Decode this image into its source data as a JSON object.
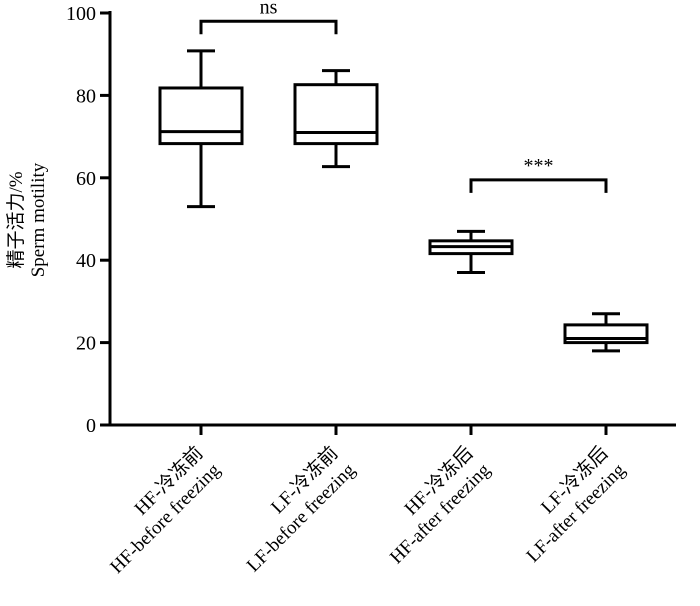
{
  "chart_data": {
    "type": "boxplot",
    "ylabel_cn": "精子活力/%",
    "ylabel_en": "Sperm motility",
    "ylim": [
      0,
      100
    ],
    "yticks": [
      0,
      20,
      40,
      60,
      80,
      100
    ],
    "groups": [
      {
        "label_cn": "HF-冷冻前",
        "label_en": "HF-before freezing",
        "min": 53,
        "q1": 68.3,
        "median": 71.2,
        "q3": 81.8,
        "max": 90.8
      },
      {
        "label_cn": "LF-冷冻前",
        "label_en": "LF-before freezing",
        "min": 62.7,
        "q1": 68.3,
        "median": 71,
        "q3": 82.6,
        "max": 86
      },
      {
        "label_cn": "HF-冷冻后",
        "label_en": "HF-after freezing",
        "min": 37,
        "q1": 41.6,
        "median": 43.3,
        "q3": 44.7,
        "max": 47
      },
      {
        "label_cn": "LF-冷冻后",
        "label_en": "LF-after freezing",
        "min": 18,
        "q1": 20,
        "median": 21,
        "q3": 24.3,
        "max": 27
      }
    ],
    "significance": [
      {
        "from": 0,
        "to": 1,
        "label": "ns",
        "y": 98
      },
      {
        "from": 2,
        "to": 3,
        "label": "***",
        "y": 59.5
      }
    ]
  }
}
